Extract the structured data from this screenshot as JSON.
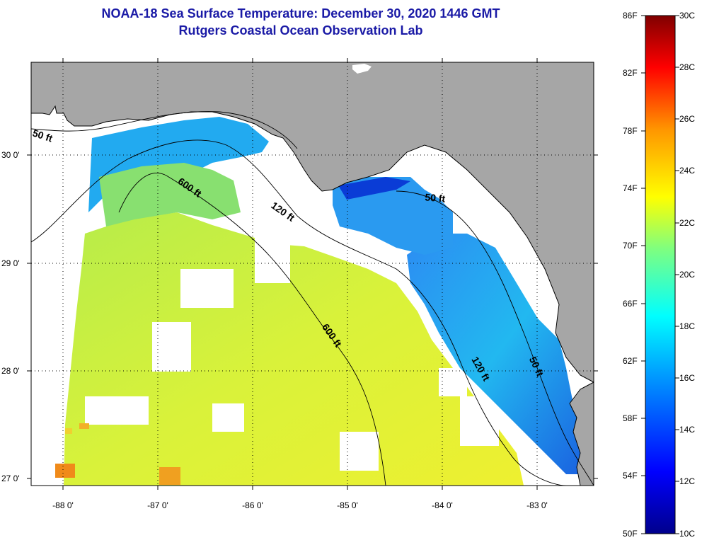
{
  "title_line1": "NOAA-18 Sea Surface Temperature:  December 30, 2020 1446 GMT",
  "title_line2": "Rutgers Coastal Ocean Observation Lab",
  "lat_labels": [
    "30 0'",
    "29 0'",
    "28 0'",
    "27 0'"
  ],
  "lon_labels": [
    "-88 0'",
    "-87 0'",
    "-86 0'",
    "-85 0'",
    "-84 0'",
    "-83 0'"
  ],
  "contour_labels": [
    "50 ft",
    "600 ft",
    "120 ft",
    "50 ft",
    "600 ft",
    "120 ft",
    "50 ft"
  ],
  "colorbar": {
    "f_labels": [
      "86F",
      "82F",
      "78F",
      "74F",
      "70F",
      "66F",
      "62F",
      "58F",
      "54F",
      "50F"
    ],
    "c_labels": [
      "30C",
      "28C",
      "26C",
      "24C",
      "22C",
      "20C",
      "18C",
      "16C",
      "14C",
      "12C",
      "10C"
    ]
  },
  "colors": {
    "land": "#a6a6a6",
    "cloud": "#ffffff",
    "warm_water": "#d6f03a",
    "cool_water": "#1a7fe8",
    "title": "#1a1aa6"
  }
}
